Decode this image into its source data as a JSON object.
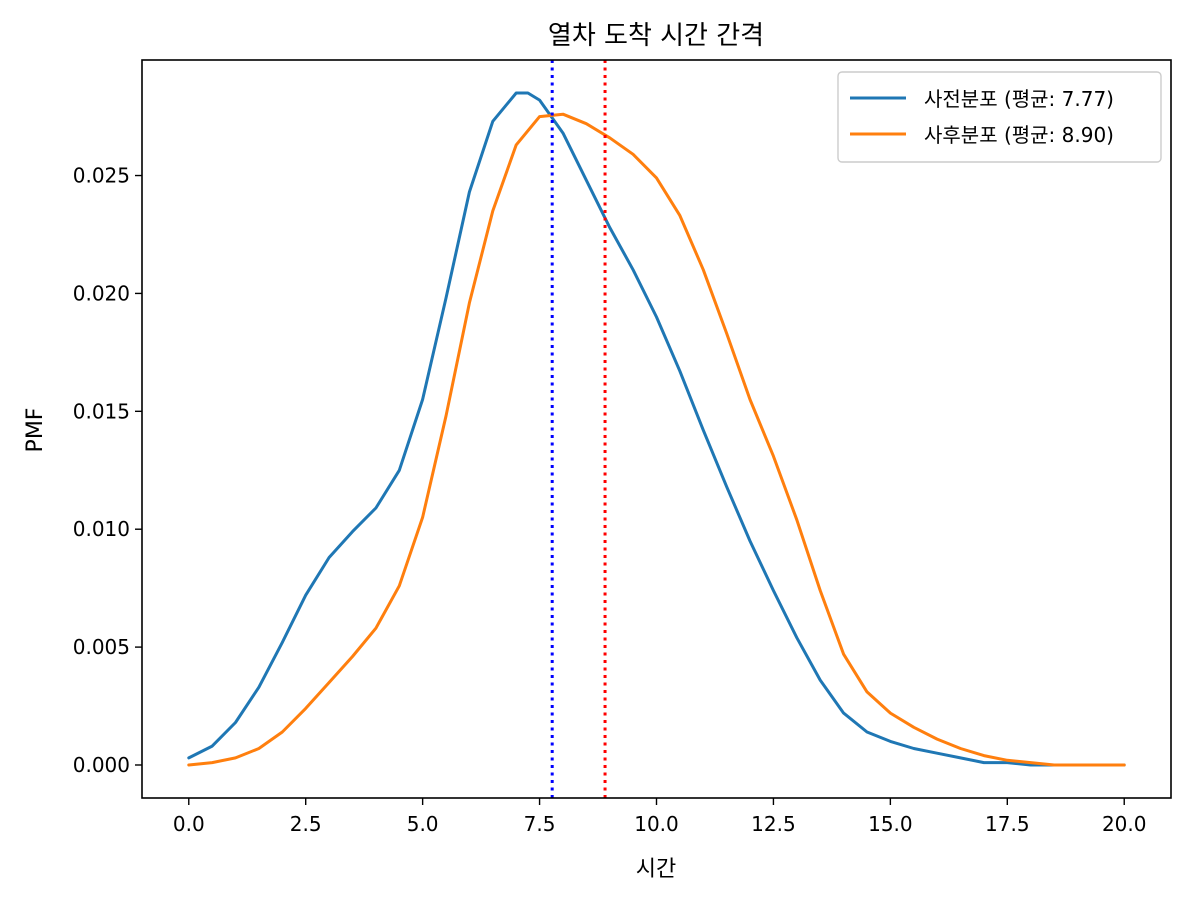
{
  "chart_data": {
    "type": "line",
    "title": "열차 도착 시간 간격",
    "xlabel": "시간",
    "ylabel": "PMF",
    "xlim": [
      -1.0,
      21.0
    ],
    "ylim": [
      -0.0014,
      0.0299
    ],
    "x_ticks": [
      0.0,
      2.5,
      5.0,
      7.5,
      10.0,
      12.5,
      15.0,
      17.5,
      20.0
    ],
    "x_tick_labels": [
      "0.0",
      "2.5",
      "5.0",
      "7.5",
      "10.0",
      "12.5",
      "15.0",
      "17.5",
      "20.0"
    ],
    "y_ticks": [
      0.0,
      0.005,
      0.01,
      0.015,
      0.02,
      0.025
    ],
    "y_tick_labels": [
      "0.000",
      "0.005",
      "0.010",
      "0.015",
      "0.020",
      "0.025"
    ],
    "grid": false,
    "legend_position": "top-right",
    "series": [
      {
        "name": "사전분포 (평균: 7.77)",
        "color": "#1f77b4",
        "x": [
          0.0,
          0.5,
          1.0,
          1.5,
          2.0,
          2.5,
          3.0,
          3.5,
          4.0,
          4.5,
          5.0,
          5.5,
          6.0,
          6.5,
          7.0,
          7.25,
          7.5,
          8.0,
          8.5,
          9.0,
          9.5,
          10.0,
          10.5,
          11.0,
          11.5,
          12.0,
          12.5,
          13.0,
          13.5,
          14.0,
          14.5,
          15.0,
          15.5,
          16.0,
          16.5,
          17.0,
          17.5,
          18.0,
          18.5,
          19.0,
          19.5,
          20.0
        ],
        "y": [
          0.0003,
          0.0008,
          0.0018,
          0.0033,
          0.0052,
          0.0072,
          0.0088,
          0.0099,
          0.0109,
          0.0125,
          0.0155,
          0.0198,
          0.0243,
          0.0273,
          0.0285,
          0.0285,
          0.0282,
          0.0268,
          0.0248,
          0.0228,
          0.021,
          0.019,
          0.0167,
          0.0142,
          0.0118,
          0.0095,
          0.0074,
          0.0054,
          0.0036,
          0.0022,
          0.0014,
          0.001,
          0.0007,
          0.0005,
          0.0003,
          0.0001,
          0.0001,
          0.0,
          0.0,
          0.0,
          0.0,
          0.0
        ]
      },
      {
        "name": "사후분포 (평균: 8.90)",
        "color": "#ff7f0e",
        "x": [
          0.0,
          0.5,
          1.0,
          1.5,
          2.0,
          2.5,
          3.0,
          3.5,
          4.0,
          4.5,
          5.0,
          5.5,
          6.0,
          6.5,
          7.0,
          7.5,
          8.0,
          8.5,
          9.0,
          9.5,
          10.0,
          10.5,
          11.0,
          11.5,
          12.0,
          12.5,
          13.0,
          13.5,
          14.0,
          14.5,
          15.0,
          15.5,
          16.0,
          16.5,
          17.0,
          17.5,
          18.0,
          18.5,
          19.0,
          19.5,
          20.0
        ],
        "y": [
          0.0,
          0.0001,
          0.0003,
          0.0007,
          0.0014,
          0.0024,
          0.0035,
          0.0046,
          0.0058,
          0.0076,
          0.0105,
          0.0148,
          0.0196,
          0.0235,
          0.0263,
          0.0275,
          0.0276,
          0.0272,
          0.0266,
          0.0259,
          0.0249,
          0.0233,
          0.021,
          0.0183,
          0.0155,
          0.0131,
          0.0104,
          0.0074,
          0.0047,
          0.0031,
          0.0022,
          0.0016,
          0.0011,
          0.0007,
          0.0004,
          0.0002,
          0.0001,
          0.0,
          0.0,
          0.0,
          0.0
        ]
      }
    ],
    "vlines": [
      {
        "x": 7.77,
        "color": "#0000ff",
        "style": "dotted"
      },
      {
        "x": 8.9,
        "color": "#ff0000",
        "style": "dotted"
      }
    ]
  }
}
